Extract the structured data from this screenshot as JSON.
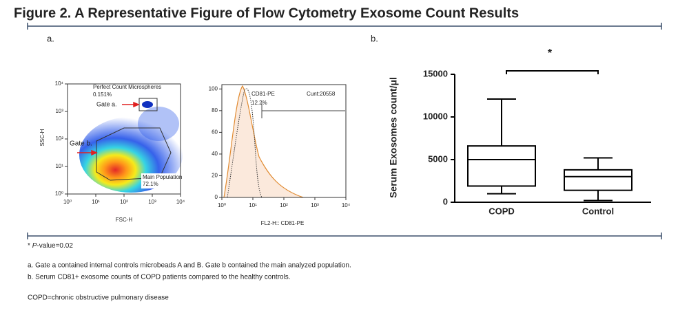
{
  "header": {
    "title": "Figure 2. A Representative Figure of Flow Cytometry Exosome Count Results"
  },
  "panels": {
    "a": {
      "label": "a.",
      "dot_plot": {
        "xlabel": "FSC-H",
        "ylabel": "SSC-H",
        "log_scale": true,
        "xlim": [
          1,
          10000
        ],
        "ylim": [
          1,
          10000
        ],
        "xticks": [
          {
            "value": 1,
            "label": "10⁰"
          },
          {
            "value": 10,
            "label": "10¹"
          },
          {
            "value": 100,
            "label": "10²"
          },
          {
            "value": 1000,
            "label": "10³"
          },
          {
            "value": 10000,
            "label": "10⁴"
          }
        ],
        "yticks": [
          {
            "value": 1,
            "label": "10⁰"
          },
          {
            "value": 10,
            "label": "10¹"
          },
          {
            "value": 100,
            "label": "10²"
          },
          {
            "value": 1000,
            "label": "10³"
          },
          {
            "value": 10000,
            "label": "10⁴"
          }
        ],
        "gate_a": {
          "name": "Perfect Count Microspheres",
          "percent": "0.151%",
          "label": "Gate a."
        },
        "gate_b": {
          "name": "Main Population",
          "percent": "72.1%",
          "label": "Gate b."
        }
      },
      "histogram": {
        "xlabel": "FL2-H:: CD81-PE",
        "log_scale": true,
        "xlim": [
          1,
          10000
        ],
        "ylim": [
          0,
          104
        ],
        "xticks": [
          {
            "value": 1,
            "label": "10⁰"
          },
          {
            "value": 10,
            "label": "10¹"
          },
          {
            "value": 100,
            "label": "10²"
          },
          {
            "value": 1000,
            "label": "10³"
          },
          {
            "value": 10000,
            "label": "10⁴"
          }
        ],
        "yticks": [
          0,
          20,
          40,
          60,
          80,
          100
        ],
        "marker": {
          "name": "CD81-PE",
          "percent": "12.2%",
          "count": "Cunt:20558"
        }
      }
    },
    "b": {
      "label": "b."
    }
  },
  "chart_data": {
    "type": "box",
    "ylabel": "Serum Exosomes count/μl",
    "categories": [
      "COPD",
      "Control"
    ],
    "boxes": [
      {
        "min": 1000,
        "q1": 1900,
        "median": 5000,
        "q3": 6600,
        "max": 12100
      },
      {
        "min": 200,
        "q1": 1400,
        "median": 3000,
        "q3": 3800,
        "max": 5200
      }
    ],
    "color": "#000000",
    "ylim": [
      0,
      15000
    ],
    "yticks": [
      0,
      5000,
      10000,
      15000
    ],
    "annotation": "*"
  },
  "footnotes": {
    "significance": [
      "*",
      "P",
      "-value=0.02"
    ],
    "notes": [
      "a. Gate a contained internal controls microbeads A and B. Gate b contained the main analyzed population.",
      "b. Serum CD81+ exosome counts of COPD patients compared to the healthy controls."
    ],
    "abbreviation": "COPD=chronic obstructive pulmonary disease"
  }
}
